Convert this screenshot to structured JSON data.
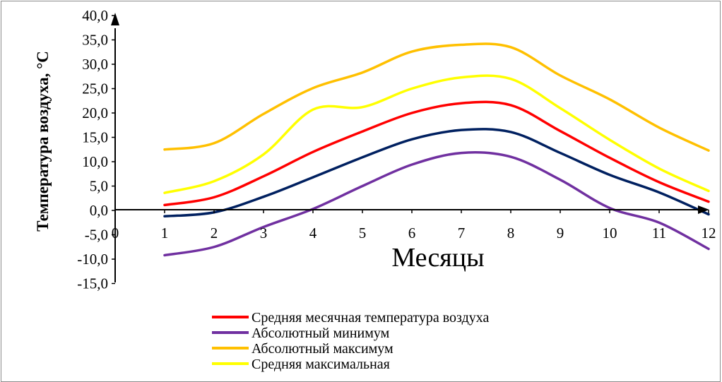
{
  "chart_data": {
    "type": "line",
    "title": "",
    "xlabel": "Месяцы",
    "ylabel": "Температура воздуха, °С",
    "xlim": [
      0,
      12
    ],
    "ylim": [
      -15,
      40
    ],
    "x_ticks": [
      "0",
      "1",
      "2",
      "3",
      "4",
      "5",
      "6",
      "7",
      "8",
      "9",
      "10",
      "11",
      "12"
    ],
    "y_ticks": [
      "40,0",
      "35,0",
      "30,0",
      "25,0",
      "20,0",
      "15,0",
      "10,0",
      "5,0",
      "0,0",
      "-5,0",
      "-10,0",
      "-15,0"
    ],
    "grid": false,
    "legend_position": "bottom",
    "x": [
      1,
      2,
      3,
      4,
      5,
      6,
      7,
      8,
      9,
      10,
      11,
      12
    ],
    "series": [
      {
        "name": "Средняя месячная температура воздуха",
        "color": "#ff0000",
        "values": [
          1.1,
          2.7,
          7.0,
          12.0,
          16.2,
          20.0,
          22.0,
          21.6,
          16.3,
          10.8,
          5.8,
          1.8
        ]
      },
      {
        "name": "Абсолютный минимум",
        "color": "#7030a0",
        "values": [
          -9.2,
          -7.5,
          -3.4,
          0.3,
          5.0,
          9.4,
          11.8,
          11.0,
          6.3,
          0.5,
          -2.5,
          -7.9
        ]
      },
      {
        "name": "Абсолютный максимум",
        "color": "#ffc000",
        "values": [
          12.5,
          13.8,
          19.8,
          25.1,
          28.3,
          32.6,
          34.0,
          33.5,
          27.7,
          22.8,
          17.0,
          12.3
        ]
      },
      {
        "name": "Средняя максимальная",
        "color": "#ffff00",
        "values": [
          3.6,
          6.0,
          11.5,
          20.7,
          21.2,
          25.0,
          27.3,
          27.0,
          21.0,
          14.5,
          8.6,
          4.0
        ]
      },
      {
        "name": "",
        "color": "#002060",
        "values": [
          -1.2,
          -0.4,
          2.8,
          6.8,
          10.9,
          14.6,
          16.5,
          16.1,
          11.8,
          7.3,
          3.7,
          -0.8
        ]
      }
    ]
  }
}
